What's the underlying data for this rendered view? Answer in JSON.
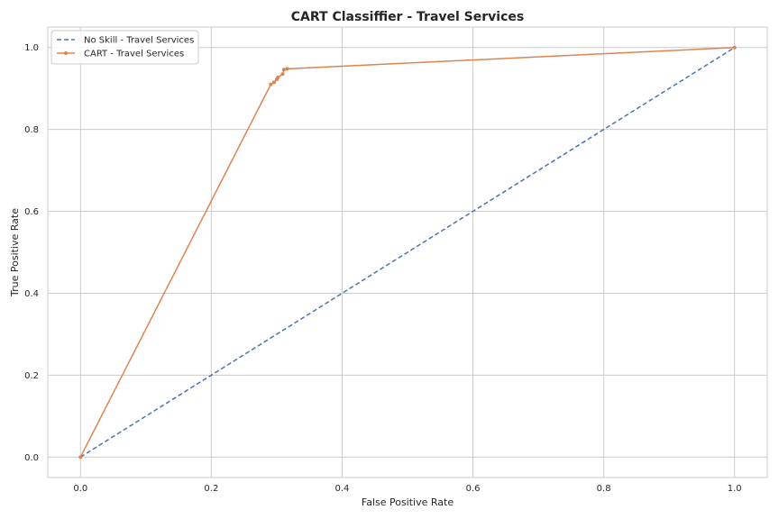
{
  "chart_data": {
    "type": "line",
    "title": "CART Classiffier - Travel Services",
    "xlabel": "False Positive Rate",
    "ylabel": "True Positive Rate",
    "xlim": [
      -0.05,
      1.05
    ],
    "ylim": [
      -0.05,
      1.05
    ],
    "xticks": [
      0.0,
      0.2,
      0.4,
      0.6,
      0.8,
      1.0
    ],
    "yticks": [
      0.0,
      0.2,
      0.4,
      0.6,
      0.8,
      1.0
    ],
    "xtick_labels": [
      "0.0",
      "0.2",
      "0.4",
      "0.6",
      "0.8",
      "1.0"
    ],
    "ytick_labels": [
      "0.0",
      "0.2",
      "0.4",
      "0.6",
      "0.8",
      "1.0"
    ],
    "grid": true,
    "legend_position": "top-left",
    "series": [
      {
        "name": "No Skill - Travel Services",
        "style": "dashed",
        "marker": false,
        "color": "#4c72b0",
        "x": [
          0.0,
          1.0
        ],
        "y": [
          0.0,
          1.0
        ]
      },
      {
        "name": "CART - Travel Services",
        "style": "solid",
        "marker": true,
        "color": "#dd8452",
        "x": [
          0.0,
          0.291,
          0.296,
          0.3,
          0.302,
          0.309,
          0.311,
          0.316,
          1.0
        ],
        "y": [
          0.0,
          0.91,
          0.915,
          0.922,
          0.927,
          0.935,
          0.946,
          0.948,
          1.0
        ]
      }
    ]
  }
}
